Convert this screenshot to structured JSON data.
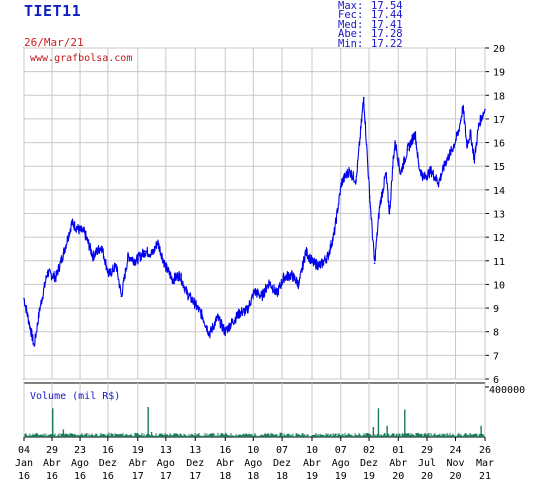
{
  "header": {
    "ticker": "TIET11",
    "date": "26/Mar/21"
  },
  "stats": [
    {
      "label": "Max:",
      "value": "17.54"
    },
    {
      "label": "Fec:",
      "value": "17.44"
    },
    {
      "label": "Med:",
      "value": "17.41"
    },
    {
      "label": "Abe:",
      "value": "17.28"
    },
    {
      "label": "Min:",
      "value": "17.22"
    }
  ],
  "colors": {
    "price_line": "#0000ee",
    "volume": "#1a7a5a",
    "grid": "#c8c8c8",
    "text_blue": "#1818c8",
    "text_red": "#d02020"
  },
  "chart_data": {
    "type": "line",
    "watermark": "www.grafbolsa.com",
    "price": {
      "ylim": [
        6,
        20
      ],
      "yticks": [
        "6",
        "7",
        "8",
        "9",
        "10",
        "11",
        "12",
        "13",
        "14",
        "15",
        "16",
        "17",
        "18",
        "19",
        "20"
      ],
      "grid": true,
      "x": [
        "2016-01-04",
        "2016-02-15",
        "2016-03-10",
        "2016-04-10",
        "2016-05-15",
        "2016-06-15",
        "2016-07-20",
        "2016-08-20",
        "2016-09-10",
        "2016-10-15",
        "2016-11-20",
        "2016-12-20",
        "2017-01-20",
        "2017-02-10",
        "2017-03-10",
        "2017-04-10",
        "2017-05-20",
        "2017-06-20",
        "2017-07-10",
        "2017-08-10",
        "2017-09-10",
        "2017-10-10",
        "2017-11-10",
        "2017-12-10",
        "2018-01-10",
        "2018-02-10",
        "2018-03-15",
        "2018-04-15",
        "2018-05-15",
        "2018-06-15",
        "2018-07-15",
        "2018-08-15",
        "2018-09-15",
        "2018-10-15",
        "2018-11-15",
        "2018-12-15",
        "2019-01-15",
        "2019-02-15",
        "2019-03-15",
        "2019-04-15",
        "2019-05-15",
        "2019-06-15",
        "2019-07-10",
        "2019-08-10",
        "2019-09-10",
        "2019-10-10",
        "2019-11-10",
        "2019-12-05",
        "2019-12-25",
        "2020-01-15",
        "2020-02-10",
        "2020-02-25",
        "2020-03-12",
        "2020-03-20",
        "2020-04-10",
        "2020-05-10",
        "2020-06-10",
        "2020-06-25",
        "2020-07-15",
        "2020-08-15",
        "2020-09-15",
        "2020-10-15",
        "2020-11-10",
        "2020-12-05",
        "2020-12-25",
        "2021-01-10",
        "2021-01-25",
        "2021-02-10",
        "2021-03-01",
        "2021-03-26"
      ],
      "values": [
        9.4,
        7.4,
        9.0,
        10.5,
        10.3,
        11.3,
        12.6,
        12.3,
        12.2,
        11.2,
        11.6,
        10.4,
        10.8,
        9.5,
        11.2,
        11.0,
        11.4,
        11.3,
        11.8,
        10.8,
        10.2,
        10.4,
        9.6,
        9.2,
        8.7,
        7.9,
        8.6,
        8.0,
        8.4,
        8.8,
        8.9,
        9.7,
        9.5,
        10.1,
        9.6,
        10.3,
        10.4,
        10.0,
        11.4,
        10.9,
        10.8,
        11.2,
        12.1,
        14.3,
        14.8,
        14.4,
        17.9,
        13.7,
        10.9,
        13.3,
        14.7,
        13.0,
        15.4,
        16.0,
        14.7,
        15.7,
        16.4,
        15.0,
        14.5,
        14.8,
        14.3,
        15.2,
        15.7,
        16.4,
        17.5,
        15.9,
        16.4,
        15.3,
        16.8,
        17.4
      ]
    },
    "volume": {
      "label": "Volume (mil R$)",
      "ylim": [
        0,
        400000
      ],
      "yticks": [
        "400000"
      ],
      "spikes": [
        {
          "x": "2016-05-02",
          "value": 230000
        },
        {
          "x": "2017-06-01",
          "value": 240000
        },
        {
          "x": "2020-01-10",
          "value": 230000
        },
        {
          "x": "2020-04-28",
          "value": 220000
        },
        {
          "x": "2016-06-15",
          "value": 60000
        },
        {
          "x": "2017-06-15",
          "value": 40000
        },
        {
          "x": "2019-12-20",
          "value": 80000
        },
        {
          "x": "2020-02-15",
          "value": 90000
        },
        {
          "x": "2021-03-10",
          "value": 90000
        }
      ],
      "baseline": 20000
    },
    "xticks": [
      {
        "day": "04",
        "mon": "Jan",
        "yr": "16",
        "date": "2016-01-04"
      },
      {
        "day": "29",
        "mon": "Abr",
        "yr": "16",
        "date": "2016-04-29"
      },
      {
        "day": "23",
        "mon": "Ago",
        "yr": "16",
        "date": "2016-08-23"
      },
      {
        "day": "16",
        "mon": "Dez",
        "yr": "16",
        "date": "2016-12-16"
      },
      {
        "day": "19",
        "mon": "Abr",
        "yr": "17",
        "date": "2017-04-19"
      },
      {
        "day": "13",
        "mon": "Ago",
        "yr": "17",
        "date": "2017-08-13"
      },
      {
        "day": "13",
        "mon": "Dez",
        "yr": "17",
        "date": "2017-12-13"
      },
      {
        "day": "16",
        "mon": "Abr",
        "yr": "18",
        "date": "2018-04-16"
      },
      {
        "day": "10",
        "mon": "Ago",
        "yr": "18",
        "date": "2018-08-10"
      },
      {
        "day": "07",
        "mon": "Dez",
        "yr": "18",
        "date": "2018-12-07"
      },
      {
        "day": "10",
        "mon": "Abr",
        "yr": "19",
        "date": "2019-04-10"
      },
      {
        "day": "07",
        "mon": "Ago",
        "yr": "19",
        "date": "2019-08-07"
      },
      {
        "day": "02",
        "mon": "Dez",
        "yr": "19",
        "date": "2019-12-02"
      },
      {
        "day": "01",
        "mon": "Abr",
        "yr": "20",
        "date": "2020-04-01"
      },
      {
        "day": "29",
        "mon": "Jul",
        "yr": "20",
        "date": "2020-07-29"
      },
      {
        "day": "24",
        "mon": "Nov",
        "yr": "20",
        "date": "2020-11-24"
      },
      {
        "day": "26",
        "mon": "Mar",
        "yr": "21",
        "date": "2021-03-26"
      }
    ],
    "grid": true
  }
}
